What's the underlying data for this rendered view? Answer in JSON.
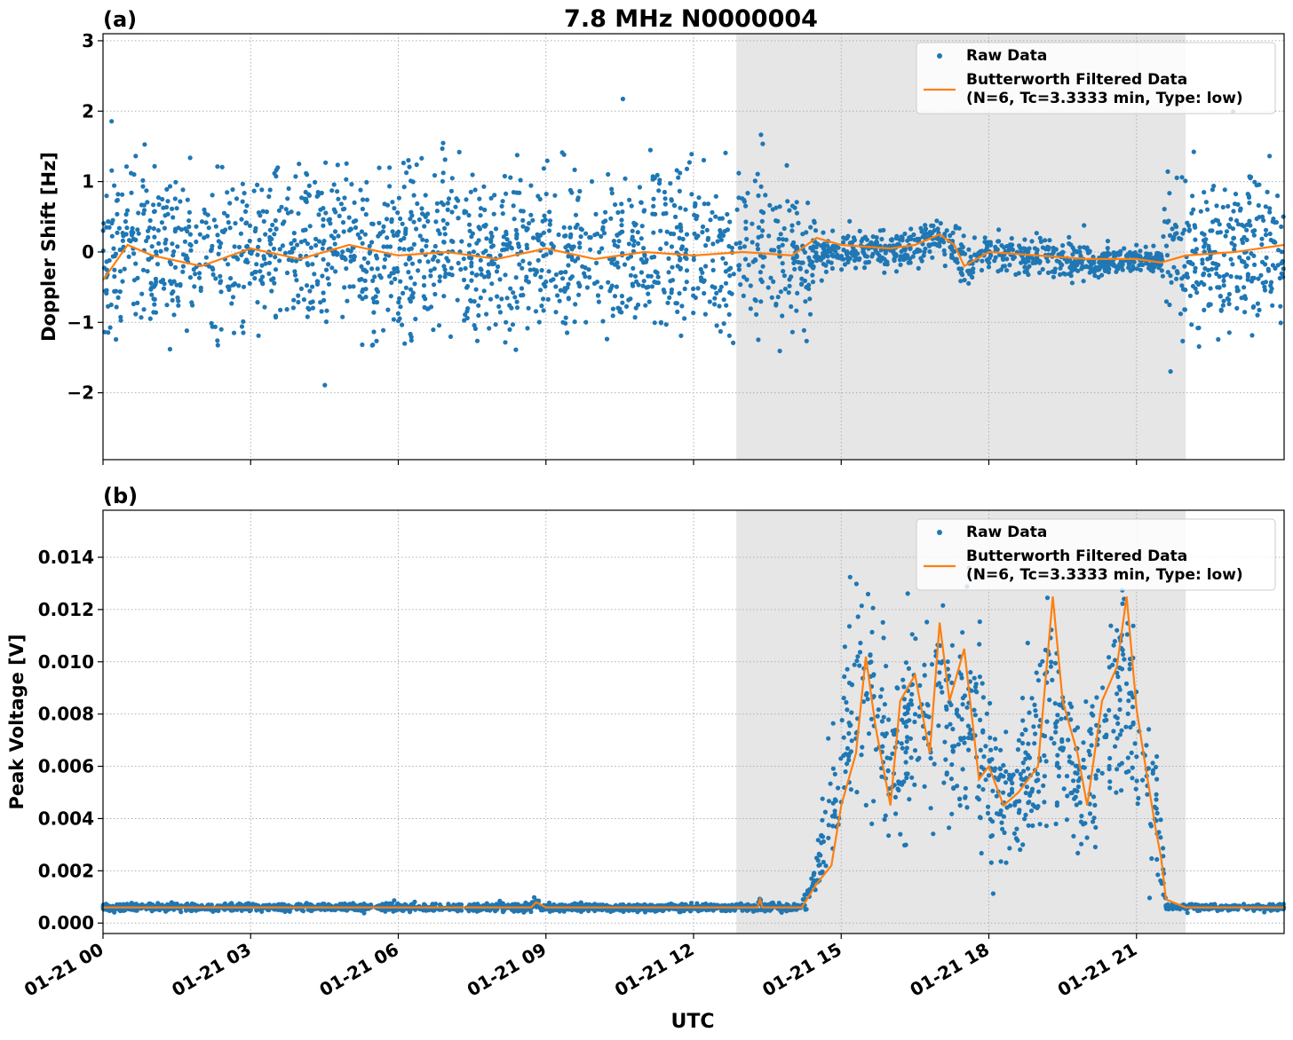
{
  "figure": {
    "title": "7.8 MHz N0000004",
    "xlabel": "UTC"
  },
  "chart_data": [
    {
      "type": "scatter",
      "panel_label": "(a)",
      "title": "7.8 MHz N0000004",
      "xlabel": "",
      "ylabel": "Doppler Shift [Hz]",
      "x_unit": "hours since 01-21 00:00 UTC",
      "xlim": [
        0,
        24
      ],
      "ylim": [
        -2.95,
        3.1
      ],
      "x_ticks": [
        0,
        3,
        6,
        9,
        12,
        15,
        18,
        21
      ],
      "y_ticks": [
        -2,
        -1,
        0,
        1,
        2,
        3
      ],
      "y_tick_labels": [
        "−2",
        "−1",
        "0",
        "1",
        "2",
        "3"
      ],
      "grid": true,
      "legend_position": "top-right",
      "shaded_region": {
        "x_start": 12.87,
        "x_end": 22.0,
        "color": "#e6e6e6"
      },
      "series": [
        {
          "name": "Raw Data",
          "type": "scatter",
          "color": "#1f77b4",
          "description": "dense noisy points; envelope (x, lower, upper)",
          "envelope": [
            [
              0.0,
              -1.6,
              1.6
            ],
            [
              3.0,
              -1.6,
              1.6
            ],
            [
              6.0,
              -1.6,
              1.6
            ],
            [
              9.0,
              -1.6,
              1.6
            ],
            [
              12.0,
              -1.6,
              1.6
            ],
            [
              14.3,
              -1.5,
              1.4
            ],
            [
              14.5,
              -0.5,
              0.5
            ],
            [
              15.0,
              -0.3,
              0.35
            ],
            [
              16.5,
              -0.35,
              0.4
            ],
            [
              17.0,
              -0.1,
              0.6
            ],
            [
              17.5,
              -0.6,
              0.3
            ],
            [
              18.0,
              -0.3,
              0.3
            ],
            [
              19.0,
              -0.45,
              0.35
            ],
            [
              20.0,
              -0.5,
              0.2
            ],
            [
              21.0,
              -0.3,
              0.1
            ],
            [
              21.5,
              -0.35,
              0.1
            ],
            [
              21.6,
              -1.6,
              1.6
            ],
            [
              24.0,
              -1.6,
              1.6
            ]
          ]
        },
        {
          "name": "Butterworth Filtered Data\n(N=6, Tc=3.3333 min, Type: low)",
          "type": "line",
          "color": "#ff7f0e",
          "points": [
            [
              0.0,
              -0.4
            ],
            [
              0.5,
              0.1
            ],
            [
              1.0,
              -0.05
            ],
            [
              2.0,
              -0.2
            ],
            [
              3.0,
              0.05
            ],
            [
              4.0,
              -0.1
            ],
            [
              5.0,
              0.1
            ],
            [
              6.0,
              -0.05
            ],
            [
              7.0,
              0.0
            ],
            [
              8.0,
              -0.1
            ],
            [
              9.0,
              0.05
            ],
            [
              10.0,
              -0.1
            ],
            [
              11.0,
              0.0
            ],
            [
              12.0,
              -0.05
            ],
            [
              13.0,
              0.0
            ],
            [
              14.0,
              -0.05
            ],
            [
              14.5,
              0.2
            ],
            [
              15.0,
              0.1
            ],
            [
              16.0,
              0.05
            ],
            [
              16.5,
              0.1
            ],
            [
              17.0,
              0.25
            ],
            [
              17.3,
              0.1
            ],
            [
              17.5,
              -0.2
            ],
            [
              18.0,
              0.0
            ],
            [
              19.0,
              -0.05
            ],
            [
              20.0,
              -0.1
            ],
            [
              21.0,
              -0.1
            ],
            [
              21.5,
              -0.15
            ],
            [
              22.0,
              -0.05
            ],
            [
              23.0,
              0.0
            ],
            [
              24.0,
              0.1
            ]
          ]
        }
      ]
    },
    {
      "type": "scatter",
      "panel_label": "(b)",
      "title": "",
      "xlabel": "UTC",
      "ylabel": "Peak Voltage [V]",
      "x_unit": "hours since 01-21 00:00 UTC",
      "xlim": [
        0,
        24
      ],
      "ylim": [
        -0.0004,
        0.0158
      ],
      "x_ticks": [
        0,
        3,
        6,
        9,
        12,
        15,
        18,
        21
      ],
      "x_tick_labels": [
        "01-21 00",
        "01-21 03",
        "01-21 06",
        "01-21 09",
        "01-21 12",
        "01-21 15",
        "01-21 18",
        "01-21 21"
      ],
      "y_ticks": [
        0.0,
        0.002,
        0.004,
        0.006,
        0.008,
        0.01,
        0.012,
        0.014
      ],
      "y_tick_labels": [
        "0.000",
        "0.002",
        "0.004",
        "0.006",
        "0.008",
        "0.010",
        "0.012",
        "0.014"
      ],
      "grid": true,
      "legend_position": "top-right",
      "shaded_region": {
        "x_start": 12.87,
        "x_end": 22.0,
        "color": "#e6e6e6"
      },
      "series": [
        {
          "name": "Raw Data",
          "type": "scatter",
          "color": "#1f77b4",
          "description": "dense noisy points; envelope (x, lower, upper)",
          "envelope": [
            [
              0.0,
              0.0004,
              0.0008
            ],
            [
              8.7,
              0.0004,
              0.0008
            ],
            [
              8.8,
              0.0004,
              0.0013
            ],
            [
              8.9,
              0.0004,
              0.0008
            ],
            [
              13.3,
              0.0004,
              0.0008
            ],
            [
              13.35,
              0.0004,
              0.0014
            ],
            [
              13.4,
              0.0004,
              0.0008
            ],
            [
              14.2,
              0.0004,
              0.0008
            ],
            [
              14.5,
              0.0005,
              0.003
            ],
            [
              14.8,
              0.001,
              0.0075
            ],
            [
              15.0,
              0.002,
              0.0115
            ],
            [
              15.3,
              0.0025,
              0.014
            ],
            [
              15.6,
              0.003,
              0.015
            ],
            [
              16.0,
              0.0015,
              0.011
            ],
            [
              16.3,
              0.0025,
              0.0125
            ],
            [
              16.7,
              0.003,
              0.014
            ],
            [
              17.0,
              0.0015,
              0.0145
            ],
            [
              17.3,
              0.0025,
              0.012
            ],
            [
              17.6,
              0.002,
              0.0135
            ],
            [
              18.0,
              0.0008,
              0.0105
            ],
            [
              18.5,
              0.0012,
              0.009
            ],
            [
              19.0,
              0.0015,
              0.0115
            ],
            [
              19.3,
              0.003,
              0.0145
            ],
            [
              19.6,
              0.0012,
              0.0105
            ],
            [
              20.0,
              0.0012,
              0.009
            ],
            [
              20.3,
              0.0025,
              0.0125
            ],
            [
              20.7,
              0.0035,
              0.015
            ],
            [
              21.0,
              0.0025,
              0.0115
            ],
            [
              21.3,
              0.001,
              0.0095
            ],
            [
              21.5,
              0.0005,
              0.006
            ],
            [
              21.6,
              0.0004,
              0.0008
            ],
            [
              24.0,
              0.0004,
              0.0008
            ]
          ]
        },
        {
          "name": "Butterworth Filtered Data\n(N=6, Tc=3.3333 min, Type: low)",
          "type": "line",
          "color": "#ff7f0e",
          "points": [
            [
              0.0,
              0.0006
            ],
            [
              8.7,
              0.0006
            ],
            [
              8.8,
              0.0008
            ],
            [
              9.0,
              0.0006
            ],
            [
              13.3,
              0.0006
            ],
            [
              13.35,
              0.0009
            ],
            [
              13.4,
              0.0006
            ],
            [
              14.2,
              0.0006
            ],
            [
              14.5,
              0.0015
            ],
            [
              14.8,
              0.0022
            ],
            [
              15.0,
              0.0045
            ],
            [
              15.3,
              0.0065
            ],
            [
              15.5,
              0.0102
            ],
            [
              15.7,
              0.0075
            ],
            [
              16.0,
              0.0045
            ],
            [
              16.2,
              0.0085
            ],
            [
              16.5,
              0.0095
            ],
            [
              16.8,
              0.0065
            ],
            [
              17.0,
              0.0115
            ],
            [
              17.2,
              0.0085
            ],
            [
              17.5,
              0.0105
            ],
            [
              17.8,
              0.0055
            ],
            [
              18.0,
              0.006
            ],
            [
              18.3,
              0.0045
            ],
            [
              18.6,
              0.005
            ],
            [
              19.0,
              0.006
            ],
            [
              19.3,
              0.0125
            ],
            [
              19.5,
              0.0085
            ],
            [
              19.8,
              0.0065
            ],
            [
              20.0,
              0.0045
            ],
            [
              20.3,
              0.0085
            ],
            [
              20.6,
              0.0098
            ],
            [
              20.8,
              0.0125
            ],
            [
              21.0,
              0.0082
            ],
            [
              21.2,
              0.0058
            ],
            [
              21.4,
              0.0035
            ],
            [
              21.5,
              0.0025
            ],
            [
              21.6,
              0.0009
            ],
            [
              22.0,
              0.0006
            ],
            [
              24.0,
              0.0006
            ]
          ]
        }
      ]
    }
  ]
}
